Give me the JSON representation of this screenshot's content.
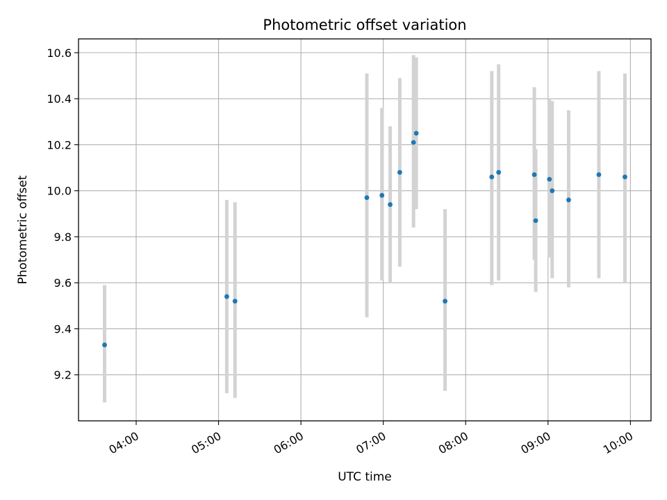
{
  "chart_data": {
    "type": "scatter",
    "title": "Photometric offset variation",
    "xlabel": "UTC time",
    "ylabel": "Photometric offset",
    "x_tick_labels": [
      "04:00",
      "05:00",
      "06:00",
      "07:00",
      "08:00",
      "09:00",
      "10:00"
    ],
    "y_tick_labels": [
      "9.2",
      "9.4",
      "9.6",
      "9.8",
      "10.0",
      "10.2",
      "10.4",
      "10.6"
    ],
    "xlim": [
      "03:18",
      "10:15"
    ],
    "ylim": [
      9.0,
      10.66
    ],
    "grid": true,
    "marker_color": "#1f77b4",
    "errorbar_color": "#d3d3d3",
    "series": [
      {
        "x": [
          "03:37",
          "05:06",
          "05:12",
          "06:48",
          "06:59",
          "07:05",
          "07:12",
          "07:22",
          "07:24",
          "07:45",
          "08:19",
          "08:24",
          "08:50",
          "08:51",
          "09:01",
          "09:03",
          "09:15",
          "09:37",
          "09:56"
        ],
        "y": [
          9.33,
          9.54,
          9.52,
          9.97,
          9.98,
          9.94,
          10.08,
          10.21,
          10.25,
          9.52,
          10.06,
          10.08,
          10.07,
          9.87,
          10.05,
          10.0,
          9.96,
          10.07,
          10.06
        ],
        "yerr_low": [
          9.08,
          9.12,
          9.1,
          9.45,
          9.61,
          9.6,
          9.67,
          9.84,
          9.92,
          9.13,
          9.59,
          9.61,
          9.7,
          9.56,
          9.71,
          9.62,
          9.58,
          9.62,
          9.6
        ],
        "yerr_high": [
          9.59,
          9.96,
          9.95,
          10.51,
          10.36,
          10.28,
          10.49,
          10.59,
          10.58,
          9.92,
          10.52,
          10.55,
          10.45,
          10.18,
          10.4,
          10.39,
          10.35,
          10.52,
          10.51
        ]
      }
    ]
  }
}
